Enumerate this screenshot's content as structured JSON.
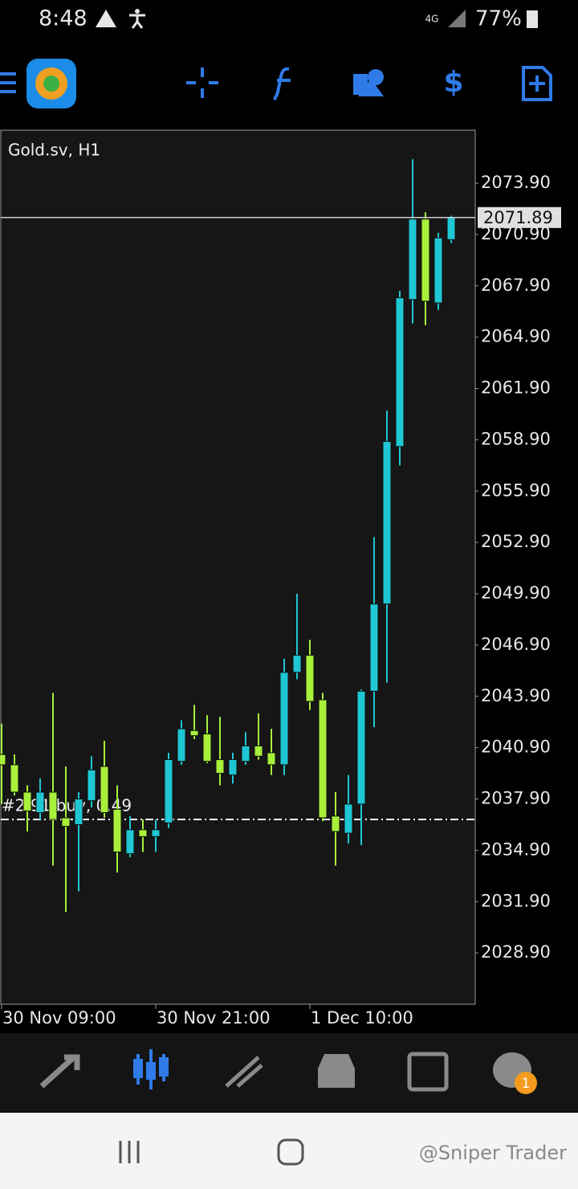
{
  "status_bar": {
    "time": "8:48",
    "network": "4G",
    "battery": "77%"
  },
  "chart_data": {
    "type": "candlestick",
    "title": "Gold.sv, H1",
    "categories": [
      "30 Nov 09:00",
      null,
      null,
      null,
      null,
      null,
      null,
      null,
      null,
      null,
      null,
      null,
      "30 Nov 21:00",
      null,
      null,
      null,
      null,
      null,
      null,
      null,
      null,
      null,
      null,
      null,
      "1 Dec 10:00",
      null,
      null,
      null,
      null,
      null,
      null,
      null,
      null,
      null,
      null,
      null
    ],
    "open": [
      2040.5,
      2039.9,
      2038.3,
      2037.1,
      2038.3,
      2036.8,
      2036.4,
      2037.8,
      2039.8,
      2037.3,
      2034.7,
      2036.1,
      2035.7,
      2036.5,
      2040.1,
      2041.9,
      2041.7,
      2040.2,
      2039.3,
      2040.1,
      2041.0,
      2040.6,
      2039.9,
      2045.3,
      2046.3,
      2043.7,
      2036.9,
      2035.9,
      2037.6,
      2044.2,
      2049.3,
      2058.5,
      2067.1,
      2071.8,
      2066.9,
      2070.6
    ],
    "high": [
      2042.3,
      2040.5,
      2038.7,
      2039.1,
      2044.1,
      2039.8,
      2038.3,
      2040.4,
      2041.3,
      2038.7,
      2036.9,
      2036.7,
      2036.7,
      2040.6,
      2042.5,
      2043.4,
      2042.8,
      2042.7,
      2040.6,
      2041.8,
      2042.9,
      2042.0,
      2046.1,
      2049.9,
      2047.2,
      2044.1,
      2038.3,
      2039.3,
      2044.3,
      2053.2,
      2060.6,
      2067.6,
      2075.3,
      2072.2,
      2071.0,
      2072.0
    ],
    "low": [
      2037.6,
      2038.1,
      2036.0,
      2036.7,
      2034.0,
      2031.3,
      2032.5,
      2037.4,
      2036.8,
      2033.6,
      2034.5,
      2034.8,
      2034.8,
      2036.2,
      2039.9,
      2041.4,
      2040.0,
      2038.7,
      2038.8,
      2039.9,
      2040.2,
      2039.3,
      2039.3,
      2044.9,
      2043.1,
      2036.6,
      2034.0,
      2035.3,
      2035.2,
      2042.1,
      2044.7,
      2057.4,
      2065.7,
      2065.6,
      2066.5,
      2070.4
    ],
    "close": [
      2039.9,
      2038.3,
      2037.2,
      2038.3,
      2036.7,
      2036.3,
      2037.9,
      2039.6,
      2037.1,
      2034.8,
      2036.1,
      2035.7,
      2036.1,
      2040.2,
      2042.0,
      2041.6,
      2040.1,
      2039.4,
      2040.2,
      2041.0,
      2040.4,
      2039.9,
      2045.3,
      2046.3,
      2043.6,
      2036.8,
      2036.0,
      2037.6,
      2044.2,
      2049.3,
      2058.8,
      2067.2,
      2071.8,
      2067.0,
      2070.7,
      2071.9
    ],
    "up_color": "#1fc7d4",
    "down_color": "#a8f03a",
    "ylim": [
      2025.9,
      2077.0
    ],
    "yticks": [
      {
        "value": 2028.9,
        "label": "2028.90"
      },
      {
        "value": 2031.9,
        "label": "2031.90"
      },
      {
        "value": 2034.9,
        "label": "2034.90"
      },
      {
        "value": 2037.9,
        "label": "2037.90"
      },
      {
        "value": 2040.9,
        "label": "2040.90"
      },
      {
        "value": 2043.9,
        "label": "2043.90"
      },
      {
        "value": 2046.9,
        "label": "2046.90"
      },
      {
        "value": 2049.9,
        "label": "2049.90"
      },
      {
        "value": 2052.9,
        "label": "2052.90"
      },
      {
        "value": 2055.9,
        "label": "2055.90"
      },
      {
        "value": 2058.9,
        "label": "2058.90"
      },
      {
        "value": 2061.9,
        "label": "2061.90"
      },
      {
        "value": 2064.9,
        "label": "2064.90"
      },
      {
        "value": 2067.9,
        "label": "2067.90"
      },
      {
        "value": 2070.9,
        "label": "2070.90"
      },
      {
        "value": 2073.9,
        "label": "2073.90"
      }
    ],
    "grid": false,
    "bid": 2071.89,
    "position": {
      "label": "#2 91 buy, 0.49",
      "price": 2036.7
    }
  },
  "bottom_nav": {
    "badge": "1"
  },
  "watermark": "@Sniper Trader"
}
